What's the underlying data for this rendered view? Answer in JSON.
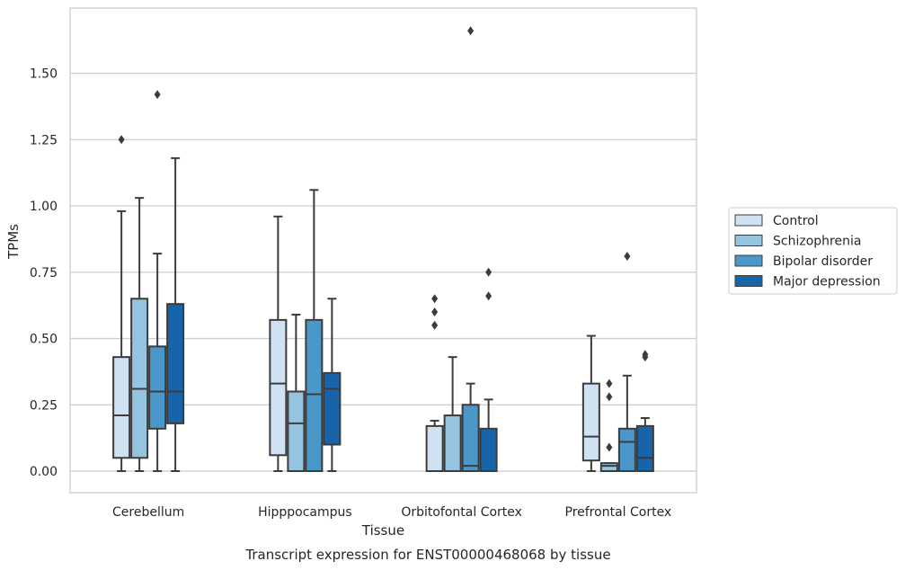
{
  "caption": "Transcript expression for ENST00000468068 by tissue",
  "chart_data": {
    "type": "boxplot",
    "xlabel": "Tissue",
    "ylabel": "TPMs",
    "categories": [
      "Cerebellum",
      "Hipppocampus",
      "Orbitofontal Cortex",
      "Prefrontal Cortex"
    ],
    "ylim": [
      -0.08,
      1.75
    ],
    "yticks": [
      {
        "value": 0.0,
        "label": "0.00"
      },
      {
        "value": 0.25,
        "label": "0.25"
      },
      {
        "value": 0.5,
        "label": "0.50"
      },
      {
        "value": 0.75,
        "label": "0.75"
      },
      {
        "value": 1.0,
        "label": "1.00"
      },
      {
        "value": 1.25,
        "label": "1.25"
      },
      {
        "value": 1.5,
        "label": "1.50"
      }
    ],
    "grid": "horizontal",
    "legend_position": "right",
    "series": [
      {
        "name": "Control",
        "color": "#d0e1f2",
        "boxes": [
          {
            "min": 0.0,
            "q1": 0.05,
            "median": 0.21,
            "q3": 0.43,
            "max": 0.98,
            "outliers": [
              1.25
            ]
          },
          {
            "min": 0.0,
            "q1": 0.06,
            "median": 0.33,
            "q3": 0.57,
            "max": 0.96,
            "outliers": []
          },
          {
            "min": 0.0,
            "q1": 0.0,
            "median": 0.0,
            "q3": 0.17,
            "max": 0.19,
            "outliers": [
              0.55,
              0.6,
              0.65
            ]
          },
          {
            "min": 0.0,
            "q1": 0.04,
            "median": 0.13,
            "q3": 0.33,
            "max": 0.51,
            "outliers": []
          }
        ]
      },
      {
        "name": "Schizophrenia",
        "color": "#94c4df",
        "boxes": [
          {
            "min": 0.0,
            "q1": 0.05,
            "median": 0.31,
            "q3": 0.65,
            "max": 1.03,
            "outliers": []
          },
          {
            "min": 0.0,
            "q1": 0.0,
            "median": 0.18,
            "q3": 0.3,
            "max": 0.59,
            "outliers": []
          },
          {
            "min": 0.0,
            "q1": 0.0,
            "median": 0.0,
            "q3": 0.21,
            "max": 0.43,
            "outliers": []
          },
          {
            "min": 0.0,
            "q1": 0.0,
            "median": 0.02,
            "q3": 0.03,
            "max": 0.03,
            "outliers": [
              0.09,
              0.28,
              0.33
            ]
          }
        ]
      },
      {
        "name": "Bipolar disorder",
        "color": "#4a98c9",
        "boxes": [
          {
            "min": 0.0,
            "q1": 0.16,
            "median": 0.3,
            "q3": 0.47,
            "max": 0.82,
            "outliers": [
              1.42
            ]
          },
          {
            "min": 0.0,
            "q1": 0.0,
            "median": 0.29,
            "q3": 0.57,
            "max": 1.06,
            "outliers": []
          },
          {
            "min": 0.0,
            "q1": 0.0,
            "median": 0.02,
            "q3": 0.25,
            "max": 0.33,
            "outliers": [
              1.66
            ]
          },
          {
            "min": 0.0,
            "q1": 0.0,
            "median": 0.11,
            "q3": 0.16,
            "max": 0.36,
            "outliers": [
              0.81
            ]
          }
        ]
      },
      {
        "name": "Major depression",
        "color": "#1764ab",
        "boxes": [
          {
            "min": 0.0,
            "q1": 0.18,
            "median": 0.3,
            "q3": 0.63,
            "max": 1.18,
            "outliers": []
          },
          {
            "min": 0.0,
            "q1": 0.1,
            "median": 0.31,
            "q3": 0.37,
            "max": 0.65,
            "outliers": []
          },
          {
            "min": 0.0,
            "q1": 0.0,
            "median": 0.0,
            "q3": 0.16,
            "max": 0.27,
            "outliers": [
              0.66,
              0.75
            ]
          },
          {
            "min": 0.0,
            "q1": 0.0,
            "median": 0.05,
            "q3": 0.17,
            "max": 0.2,
            "outliers": [
              0.43,
              0.44
            ]
          }
        ]
      }
    ]
  }
}
